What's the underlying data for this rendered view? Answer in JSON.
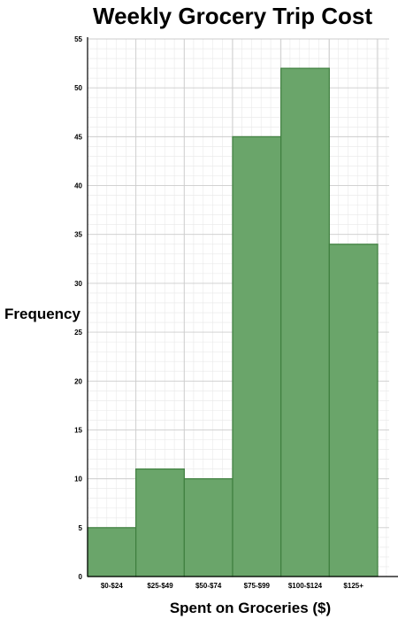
{
  "chart_data": {
    "type": "bar",
    "title": "Weekly Grocery Trip Cost",
    "xlabel": "Spent on Groceries ($)",
    "ylabel": "Frequency",
    "categories": [
      "$0-$24",
      "$25-$49",
      "$50-$74",
      "$75-$99",
      "$100-$124",
      "$125+"
    ],
    "values": [
      5,
      11,
      10,
      45,
      52,
      34
    ],
    "ylim": [
      0,
      55
    ],
    "yticks": [
      0,
      5,
      10,
      15,
      20,
      25,
      30,
      35,
      40,
      45,
      50,
      55
    ],
    "grid": true,
    "bar_color": "#6aa56a",
    "bar_edge_color": "#3f7f3f",
    "grid_color": "#cccccc",
    "minor_grid_color": "#e8e8e8"
  }
}
